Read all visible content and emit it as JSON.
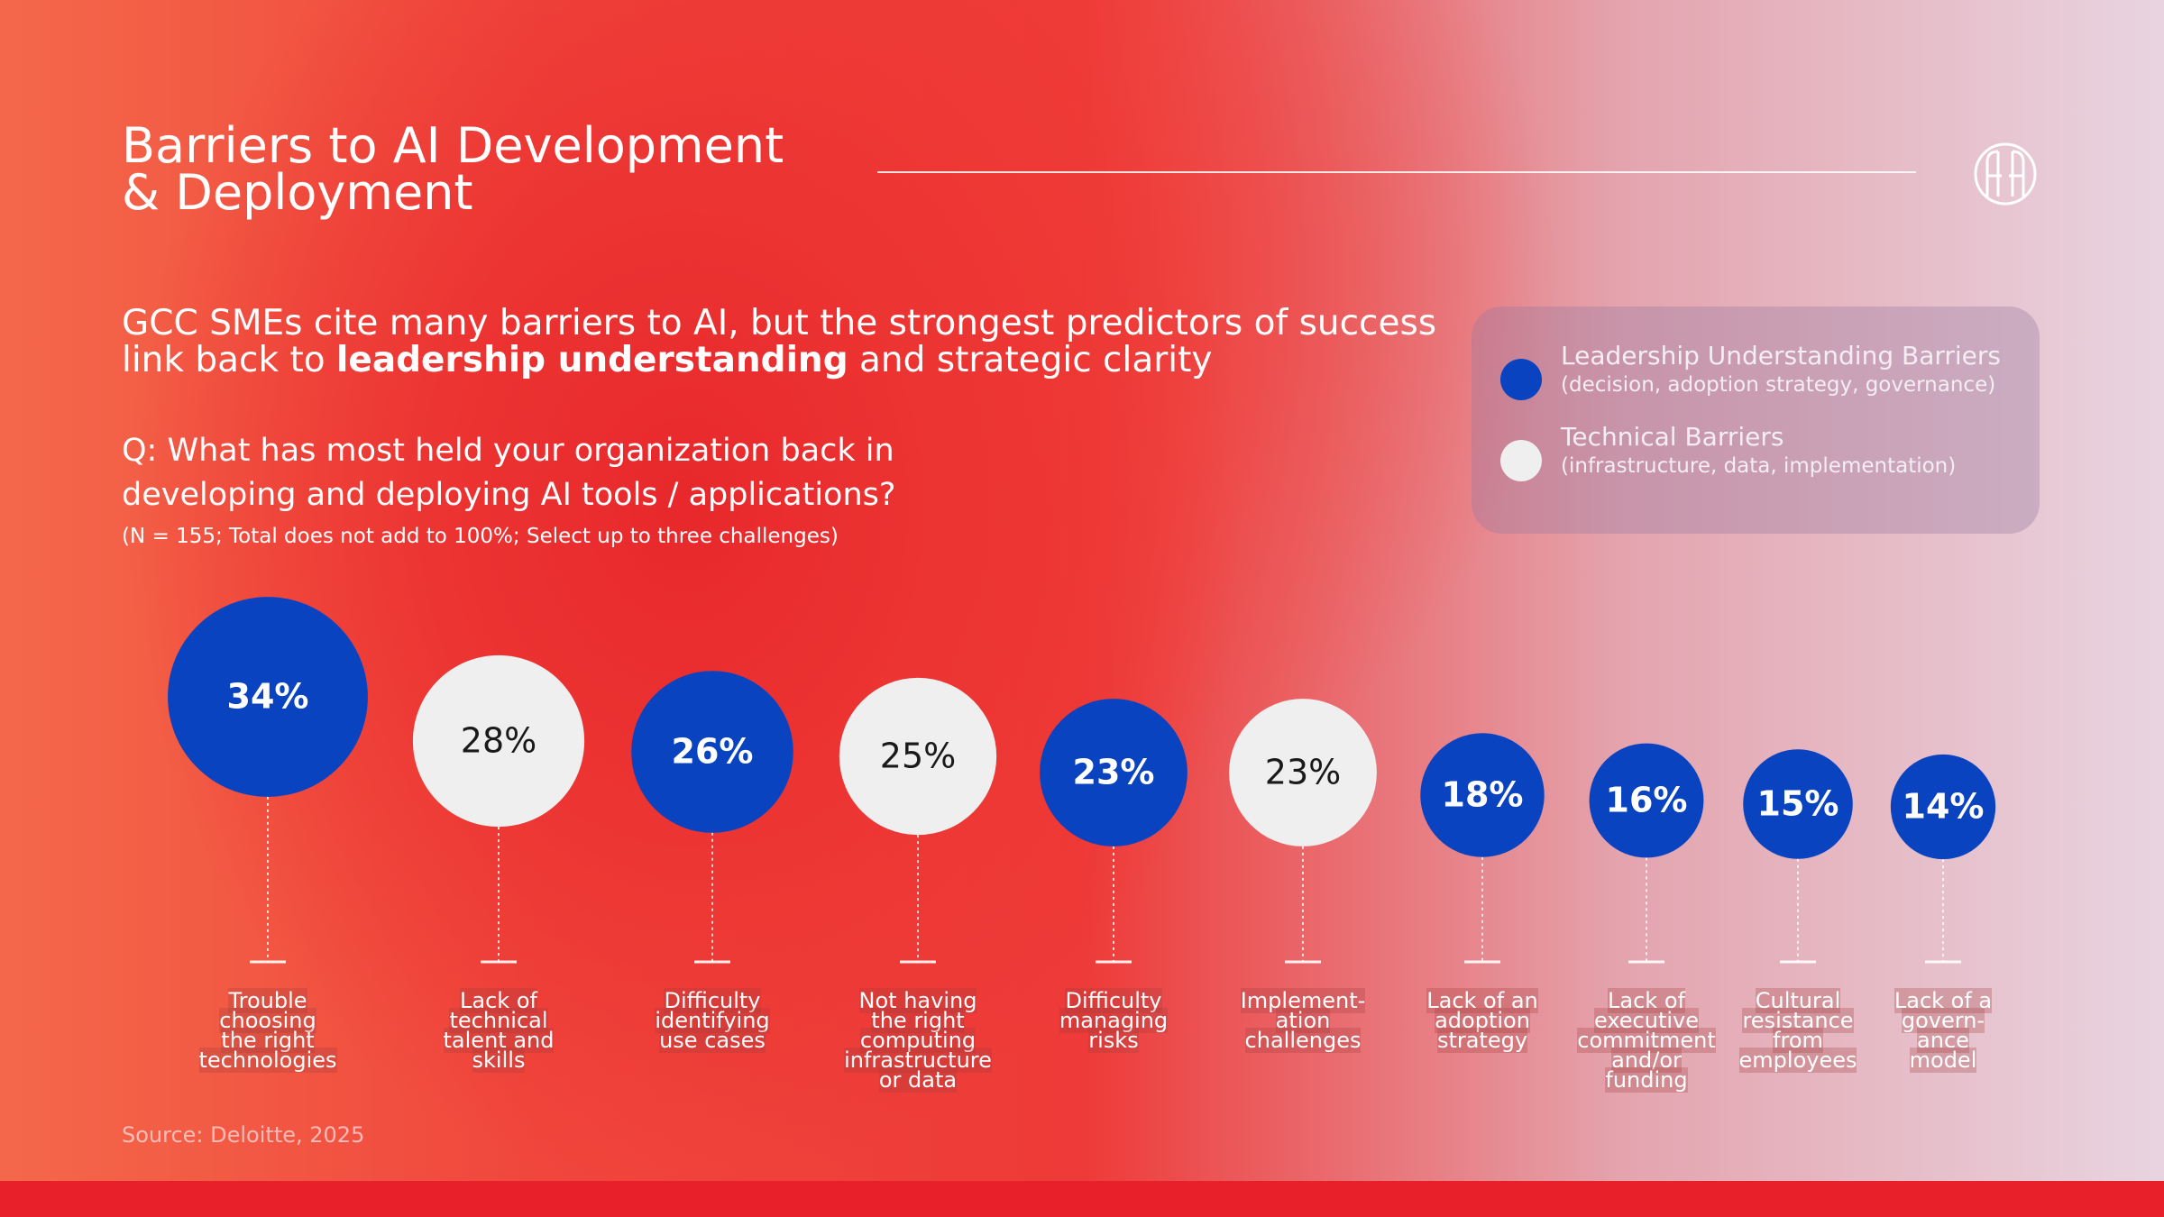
{
  "chart_data": {
    "type": "bubble",
    "title": "Barriers to AI Development & Deployment",
    "subtitle_parts": [
      "GCC SMEs cite many barriers to AI, but the strongest predictors of success link back to ",
      "leadership understanding",
      " and strategic clarity"
    ],
    "question": "Q: What has most held your organization back in developing and deploying AI tools / applications?",
    "note": "(N = 155; Total does not add to 100%; Select up to three challenges)",
    "source": "Source: Deloitte, 2025",
    "categories": [
      "Trouble\nchoosing\nthe right\ntechnologies",
      "Lack of\ntechnical\ntalent and\nskills",
      "Difficulty\nidentifying\nuse cases",
      "Not having\nthe right\ncomputing\ninfrastructure\nor data",
      "Difficulty\nmanaging\nrisks",
      "Implement-\nation\nchallenges",
      "Lack of an\nadoption\nstrategy",
      "Lack of\nexecutive\ncommitment\nand/or\nfunding",
      "Cultural\nresistance\nfrom\nemployees",
      "Lack of a\ngovern-\nance\nmodel"
    ],
    "series": [
      {
        "name": "Leadership Understanding Barriers",
        "description": "(decision, adoption strategy, governance)",
        "color": "#0a43c0",
        "text_color": "#ffffff",
        "values": [
          34,
          null,
          26,
          null,
          23,
          null,
          18,
          16,
          15,
          14
        ],
        "value_labels": [
          "34%",
          null,
          "26%",
          null,
          "23%",
          null,
          "18%",
          "16%",
          "15%",
          "14%"
        ]
      },
      {
        "name": "Technical Barriers",
        "description": "(infrastructure, data, implementation)",
        "color": "#efefef",
        "text_color": "#1a1a1a",
        "values": [
          null,
          28,
          null,
          25,
          null,
          23,
          null,
          null,
          null,
          null
        ],
        "value_labels": [
          null,
          "28%",
          null,
          "25%",
          null,
          "23%",
          null,
          null,
          null,
          null
        ]
      }
    ]
  }
}
